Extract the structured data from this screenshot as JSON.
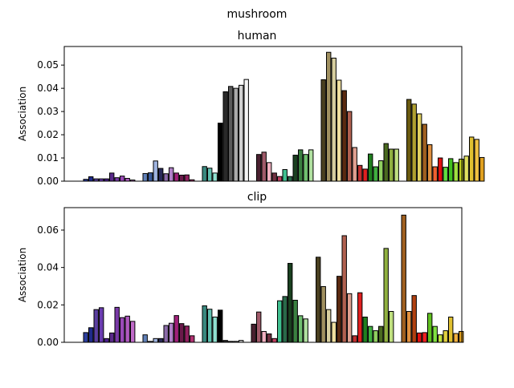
{
  "figure": {
    "suptitle": "mushroom"
  },
  "chart_data": [
    {
      "type": "bar",
      "title": "human",
      "xlabel": "",
      "ylabel": "Association",
      "ylim": [
        0,
        0.058
      ],
      "yticks": [
        0.0,
        0.01,
        0.02,
        0.03,
        0.04,
        0.05
      ],
      "ytick_labels": [
        "0.00",
        "0.01",
        "0.02",
        "0.03",
        "0.04",
        "0.05"
      ],
      "grid": false,
      "groups": [
        {
          "values": [
            0.0008,
            0.0019,
            0.001,
            0.001,
            0.001,
            0.0035,
            0.0015,
            0.0022,
            0.0012,
            0.0005
          ],
          "colors": [
            "#2c3e9e",
            "#1f2a8a",
            "#5a3fa0",
            "#6a3cb0",
            "#4b1f8f",
            "#5a2a8a",
            "#7a3aa8",
            "#9a4ab8",
            "#b05ac0",
            "#c06ac8"
          ]
        },
        {
          "values": [
            0.0033,
            0.0036,
            0.0087,
            0.0055,
            0.0032,
            0.0058,
            0.0035,
            0.0026,
            0.0027,
            0.0006
          ],
          "colors": [
            "#6080b8",
            "#3a5a9a",
            "#9fb4e0",
            "#2a2a5a",
            "#8a6aa8",
            "#b080c8",
            "#a0207a",
            "#6a1a4a",
            "#902060",
            "#b03070"
          ]
        },
        {
          "values": [
            0.0063,
            0.0056,
            0.0035,
            0.025,
            0.0385,
            0.0408,
            0.04,
            0.0413,
            0.0438
          ],
          "colors": [
            "#3a8a80",
            "#60c0b0",
            "#90e0d0",
            "#000000",
            "#2a2a2a",
            "#5a5a5a",
            "#aaaaaa",
            "#d0d0d0",
            "#f5f5f5"
          ]
        },
        {
          "values": [
            0.0115,
            0.0125,
            0.008,
            0.0035,
            0.002,
            0.005,
            0.002,
            0.0112,
            0.0135,
            0.0115,
            0.0135
          ],
          "colors": [
            "#4a2030",
            "#a05a6a",
            "#f0b0c0",
            "#703040",
            "#c04060",
            "#40c090",
            "#2a6a4a",
            "#1a4020",
            "#3a8040",
            "#70c070",
            "#b0e0a0"
          ]
        },
        {
          "values": [
            0.0437,
            0.0555,
            0.053,
            0.0435,
            0.039,
            0.03,
            0.0145,
            0.0068,
            0.0052,
            0.0117,
            0.0062,
            0.0088,
            0.0162,
            0.0138,
            0.0138
          ],
          "colors": [
            "#4a4020",
            "#a09060",
            "#d8cfa0",
            "#f0e0a0",
            "#5a2a10",
            "#b06050",
            "#e0a090",
            "#c03030",
            "#e02020",
            "#208020",
            "#40b040",
            "#90d060",
            "#4a6a20",
            "#90b040",
            "#c0e080"
          ]
        },
        {
          "values": [
            0.0352,
            0.0332,
            0.029,
            0.0245,
            0.0157,
            0.0062,
            0.01,
            0.006,
            0.0097,
            0.008,
            0.0095,
            0.0108,
            0.019,
            0.018,
            0.0102
          ],
          "colors": [
            "#6a5a10",
            "#b0a030",
            "#e0d060",
            "#a06020",
            "#e09040",
            "#f06030",
            "#e01010",
            "#60e040",
            "#40c020",
            "#a0e040",
            "#c0d020",
            "#e0e060",
            "#e0c030",
            "#f0c040",
            "#e0a020"
          ]
        }
      ]
    },
    {
      "type": "bar",
      "title": "clip",
      "xlabel": "",
      "ylabel": "Association",
      "ylim": [
        0,
        0.072
      ],
      "yticks": [
        0.0,
        0.02,
        0.04,
        0.06
      ],
      "ytick_labels": [
        "0.00",
        "0.02",
        "0.04",
        "0.06"
      ],
      "grid": false,
      "groups": [
        {
          "values": [
            0.0052,
            0.0078,
            0.0175,
            0.0185,
            0.002,
            0.005,
            0.0187,
            0.0132,
            0.014,
            0.0112
          ],
          "colors": [
            "#2c3e9e",
            "#1f2a8a",
            "#5a3fa0",
            "#6a3cb0",
            "#4b1f8f",
            "#5a2a8a",
            "#7a3aa8",
            "#9a4ab8",
            "#b05ac0",
            "#c06ac8"
          ]
        },
        {
          "values": [
            0.004,
            0.0005,
            0.002,
            0.002,
            0.009,
            0.0102,
            0.0143,
            0.01,
            0.0087,
            0.0035
          ],
          "colors": [
            "#6080b8",
            "#3a5a9a",
            "#9fb4e0",
            "#2a2a5a",
            "#8a6aa8",
            "#b080c8",
            "#a0207a",
            "#6a1a4a",
            "#902060",
            "#b03070"
          ]
        },
        {
          "values": [
            0.0195,
            0.0177,
            0.0135,
            0.0172,
            0.001,
            0.0005,
            0.0005,
            0.001
          ],
          "colors": [
            "#3a8a80",
            "#60c0b0",
            "#90e0d0",
            "#000000",
            "#2a2a2a",
            "#5a5a5a",
            "#aaaaaa",
            "#d0d0d0"
          ]
        },
        {
          "values": [
            0.0097,
            0.0162,
            0.0058,
            0.0045,
            0.002,
            0.0222,
            0.0245,
            0.0422,
            0.0225,
            0.0142,
            0.0125
          ],
          "colors": [
            "#4a2030",
            "#a05a6a",
            "#f0b0c0",
            "#703040",
            "#c04060",
            "#40c090",
            "#2a6a4a",
            "#1a4020",
            "#3a8040",
            "#70c070",
            "#b0e0a0"
          ]
        },
        {
          "values": [
            0.0455,
            0.0298,
            0.0175,
            0.0107,
            0.0353,
            0.057,
            0.026,
            0.0035,
            0.0265,
            0.0135,
            0.0085,
            0.0062,
            0.0085,
            0.0502,
            0.0165
          ],
          "colors": [
            "#4a4020",
            "#a09060",
            "#d8cfa0",
            "#f0e0a0",
            "#5a2a10",
            "#b06050",
            "#e0a090",
            "#c03030",
            "#e02020",
            "#208020",
            "#40b040",
            "#90d060",
            "#4a6a20",
            "#90b040",
            "#c0e080"
          ]
        },
        {
          "values": [
            0.068,
            0.0165,
            0.025,
            0.005,
            0.0052,
            0.0155,
            0.0085,
            0.004,
            0.0062,
            0.0135,
            0.0047,
            0.0058
          ],
          "colors": [
            "#a06020",
            "#e09040",
            "#b04010",
            "#e01010",
            "#f02020",
            "#60c020",
            "#80e040",
            "#c0e040",
            "#e0d040",
            "#e0c030",
            "#f0b040",
            "#e0a020"
          ]
        }
      ]
    }
  ]
}
